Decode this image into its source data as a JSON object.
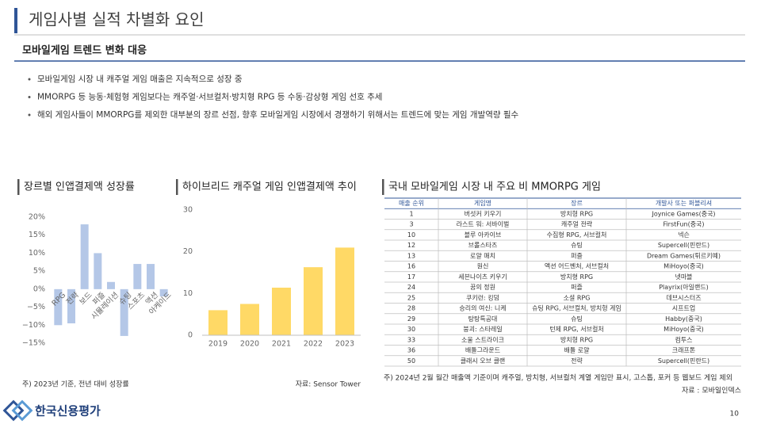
{
  "title": "게임사별 실적 차별화 요인",
  "subtitle": "모바일게임 트렌드 변화 대응",
  "bullets": [
    "모바일게임 시장 내 캐주얼 게임 매출은 지속적으로 성장 중",
    "MMORPG 등 능동·체험형 게임보다는 캐주얼·서브컬처·방치형 RPG 등 수동·감상형 게임 선호 추세",
    "해외 게임사들이 MMORPG를 제외한 대부분의 장르 선점, 향후 모바일게임 시장에서 경쟁하기 위해서는 트렌드에 맞는 게임 개발역량 필수"
  ],
  "chart_data": [
    {
      "type": "bar",
      "title": "장르별 인앱결제액 성장률",
      "categories": [
        "RPG",
        "전략",
        "보드",
        "퍼즐",
        "시뮬레이션",
        "슈팅",
        "스포츠",
        "액션",
        "아케이드"
      ],
      "values": [
        -10,
        -9.5,
        18,
        10,
        2,
        -13,
        7,
        7,
        -2
      ],
      "color": "#b4c7e7",
      "ylim": [
        -15,
        20
      ],
      "yticks": [
        {
          "value": 20,
          "label": "20%"
        },
        {
          "value": 15,
          "label": "15%"
        },
        {
          "value": 10,
          "label": "10%"
        },
        {
          "value": 5,
          "label": "5%"
        },
        {
          "value": 0,
          "label": "0%"
        },
        {
          "value": -5,
          "label": "−5%"
        },
        {
          "value": -10,
          "label": "−10%"
        },
        {
          "value": -15,
          "label": "−15%"
        }
      ],
      "note": "주) 2023년 기준, 전년 대비 성장률"
    },
    {
      "type": "bar",
      "title": "하이브리드 캐주얼 게임 인앱결제액 추이",
      "categories": [
        "2019",
        "2020",
        "2021",
        "2022",
        "2023"
      ],
      "values": [
        6,
        7.5,
        11.4,
        16.3,
        21
      ],
      "color": "#ffd966",
      "ylim": [
        0,
        30
      ],
      "yticks": [
        0,
        10,
        20,
        30
      ],
      "source": "자료: Sensor Tower"
    }
  ],
  "table": {
    "title": "국내 모바일게임 시장 내 주요 비 MMORPG 게임",
    "header": [
      "매출 순위",
      "게임명",
      "장르",
      "개발사 또는 퍼블리셔"
    ],
    "rows": [
      [
        "1",
        "버섯커 키우기",
        "방치형 RPG",
        "Joynice Games(중국)"
      ],
      [
        "3",
        "라스트 워: 서바이벌",
        "캐주얼 전략",
        "FirstFun(중국)"
      ],
      [
        "10",
        "블루 아카이브",
        "수집형 RPG, 서브컬처",
        "넥슨"
      ],
      [
        "12",
        "브롤스타즈",
        "슈팅",
        "Supercell(핀란드)"
      ],
      [
        "13",
        "로얄 매치",
        "퍼즐",
        "Dream Games(튀르키예)"
      ],
      [
        "16",
        "원신",
        "액션 어드벤처, 서브컬처",
        "MiHoyo(중국)"
      ],
      [
        "17",
        "세븐나이츠 키우기",
        "방치형 RPG",
        "넷마블"
      ],
      [
        "24",
        "꿈의 정원",
        "퍼즐",
        "Playrix(아일랜드)"
      ],
      [
        "25",
        "쿠키런: 킹덤",
        "소셜 RPG",
        "데브시스터즈"
      ],
      [
        "28",
        "승리의 여신: 니케",
        "슈팅 RPG, 서브컬처, 방치형 게임",
        "시프트업"
      ],
      [
        "29",
        "탕탕특공대",
        "슈팅",
        "Habby(중국)"
      ],
      [
        "30",
        "붕괴: 스타레일",
        "턴제 RPG, 서브컬처",
        "MiHoyo(중국)"
      ],
      [
        "33",
        "소울 스트라이크",
        "방치형 RPG",
        "컴투스"
      ],
      [
        "36",
        "배틀그라운드",
        "배틀 로얄",
        "크래프톤"
      ],
      [
        "50",
        "클래시 오브 클랜",
        "전략",
        "Supercell(핀란드)"
      ]
    ],
    "note": "주) 2024년 2월 월간 매출액 기준이며 캐주얼, 방치형, 서브컬처 계열 게임만 표시, 고스톱, 포커 등 웹보드 게임 제외",
    "source": "자료 : 모바일인덱스"
  },
  "footer": {
    "logo": "한국신용평가",
    "page": "10"
  }
}
